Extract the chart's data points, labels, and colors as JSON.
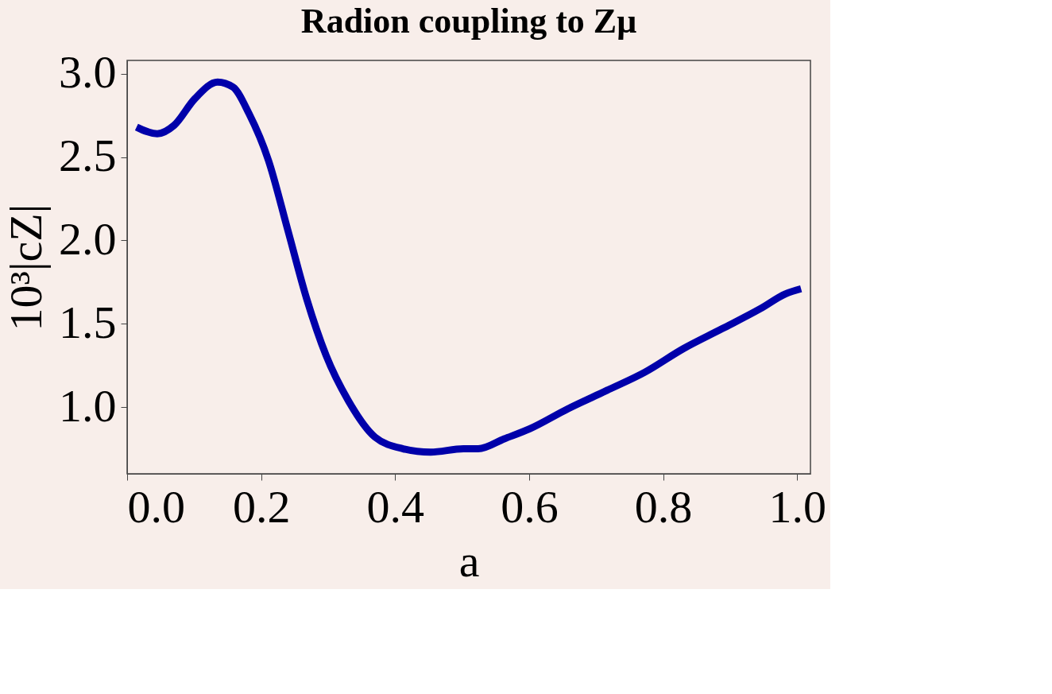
{
  "chart_data": {
    "type": "line",
    "title": "Radion coupling to Zμ",
    "xlabel": "a",
    "ylabel": "10³|cZ|",
    "x": [
      0.014,
      0.045,
      0.07,
      0.101,
      0.135,
      0.158,
      0.182,
      0.211,
      0.24,
      0.268,
      0.297,
      0.33,
      0.37,
      0.412,
      0.453,
      0.502,
      0.524,
      0.563,
      0.601,
      0.658,
      0.716,
      0.773,
      0.83,
      0.888,
      0.945,
      0.983,
      1.006
    ],
    "series": [
      {
        "color": "#0000aa",
        "values": [
          2.68,
          2.64,
          2.69,
          2.85,
          2.95,
          2.92,
          2.76,
          2.48,
          2.06,
          1.65,
          1.31,
          1.04,
          0.82,
          0.75,
          0.73,
          0.75,
          0.75,
          0.81,
          0.87,
          0.99,
          1.1,
          1.21,
          1.35,
          1.47,
          1.59,
          1.68,
          1.71
        ]
      }
    ],
    "xlim": [
      0,
      1.02
    ],
    "xticks": [
      {
        "value": 0.0,
        "label": "0.0"
      },
      {
        "value": 0.2,
        "label": "0.2"
      },
      {
        "value": 0.4,
        "label": "0.4"
      },
      {
        "value": 0.6,
        "label": "0.6"
      },
      {
        "value": 0.8,
        "label": "0.8"
      },
      {
        "value": 1.0,
        "label": "1.0"
      }
    ],
    "ylim": [
      0.6,
      3.08
    ],
    "yticks": [
      {
        "value": 1.0,
        "label": "1.0"
      },
      1.5,
      {
        "value": 2.0,
        "label": "2.0"
      },
      2.5,
      {
        "value": 3.0,
        "label": "3.0"
      }
    ],
    "grid": false,
    "marker": "none",
    "line_style": "solid"
  }
}
